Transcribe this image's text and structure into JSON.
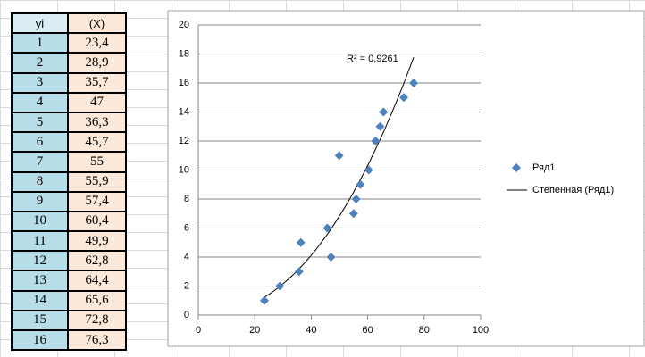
{
  "table": {
    "header": [
      "yi",
      "(X)"
    ],
    "rows": [
      [
        "1",
        "23,4"
      ],
      [
        "2",
        "28,9"
      ],
      [
        "3",
        "35,7"
      ],
      [
        "4",
        "47"
      ],
      [
        "5",
        "36,3"
      ],
      [
        "6",
        "45,7"
      ],
      [
        "7",
        "55"
      ],
      [
        "8",
        "55,9"
      ],
      [
        "9",
        "57,4"
      ],
      [
        "10",
        "60,4"
      ],
      [
        "11",
        "49,9"
      ],
      [
        "12",
        "62,8"
      ],
      [
        "13",
        "64,4"
      ],
      [
        "14",
        "65,6"
      ],
      [
        "15",
        "72,8"
      ],
      [
        "16",
        "76,3"
      ]
    ]
  },
  "chart_data": {
    "type": "scatter",
    "series": [
      {
        "name": "Ряд1",
        "color": "#4f81bd",
        "x": [
          23.4,
          28.9,
          35.7,
          47,
          36.3,
          45.7,
          55,
          55.9,
          57.4,
          60.4,
          49.9,
          62.8,
          64.4,
          65.6,
          72.8,
          76.3
        ],
        "values": [
          1,
          2,
          3,
          4,
          5,
          6,
          7,
          8,
          9,
          10,
          11,
          12,
          13,
          14,
          15,
          16
        ]
      }
    ],
    "trendline": {
      "name": "Степенная (Ряд1)",
      "type": "power",
      "color": "#000000"
    },
    "annotation": "R² = 0,9261",
    "xlim": [
      0,
      100
    ],
    "xticks": [
      0,
      20,
      40,
      60,
      80,
      100
    ],
    "ylim": [
      0,
      20
    ],
    "yticks": [
      0,
      2,
      4,
      6,
      8,
      10,
      12,
      14,
      16,
      18,
      20
    ],
    "grid": true
  }
}
